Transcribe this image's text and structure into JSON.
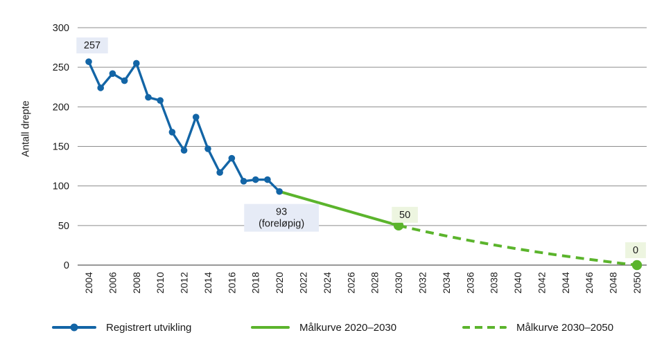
{
  "chart_data": {
    "type": "line",
    "title": "",
    "ylabel": "Antall drepte",
    "xlabel": "",
    "ylim": [
      0,
      300
    ],
    "yticks": [
      0,
      50,
      100,
      150,
      200,
      250,
      300
    ],
    "xlim": [
      2004,
      2050
    ],
    "xticks": [
      2004,
      2006,
      2008,
      2010,
      2012,
      2014,
      2016,
      2018,
      2020,
      2022,
      2024,
      2026,
      2028,
      2030,
      2032,
      2034,
      2036,
      2038,
      2040,
      2042,
      2044,
      2046,
      2048,
      2050
    ],
    "grid": "horizontal",
    "legend_position": "bottom",
    "series": [
      {
        "id": "registered",
        "name": "Registrert utvikling",
        "style": "solid-with-markers",
        "color": "#1365a6",
        "x": [
          2004,
          2005,
          2006,
          2007,
          2008,
          2009,
          2010,
          2011,
          2012,
          2013,
          2014,
          2015,
          2016,
          2017,
          2018,
          2019,
          2020
        ],
        "values": [
          257,
          224,
          242,
          233,
          255,
          212,
          208,
          168,
          145,
          187,
          147,
          117,
          135,
          106,
          108,
          108,
          93
        ]
      },
      {
        "id": "target-2020-2030",
        "name": "Målkurve 2020–2030",
        "style": "solid",
        "color": "#5bb42c",
        "x": [
          2020,
          2030
        ],
        "values": [
          93,
          50
        ]
      },
      {
        "id": "target-2030-2050",
        "name": "Målkurve 2030–2050",
        "style": "dashed",
        "shape": "gently-curved-easing-to-zero",
        "color": "#5bb42c",
        "x": [
          2030,
          2050
        ],
        "values": [
          50,
          0
        ]
      }
    ],
    "annotations": [
      {
        "id": "a2004",
        "year": 2004,
        "value": 257,
        "lines": [
          "257"
        ],
        "bg": "#e6ebf6"
      },
      {
        "id": "a2020",
        "year": 2020,
        "value": 93,
        "lines": [
          "93",
          "(foreløpig)"
        ],
        "bg": "#e6ebf6"
      },
      {
        "id": "a2030",
        "year": 2030,
        "value": 50,
        "lines": [
          "50"
        ],
        "bg": "#edf5e0"
      },
      {
        "id": "a2050",
        "year": 2050,
        "value": 0,
        "lines": [
          "0"
        ],
        "bg": "#edf5e0"
      }
    ],
    "legend": [
      {
        "label": "Registrert utvikling",
        "swatch": "blue-line-with-dot"
      },
      {
        "label": "Målkurve 2020–2030",
        "swatch": "green-solid-line"
      },
      {
        "label": "Målkurve 2030–2050",
        "swatch": "green-dashed-line"
      }
    ],
    "colors": {
      "registered": "#1365a6",
      "target": "#5bb42c",
      "grid": "#8c8c8c",
      "axis": "#595959",
      "annotation_blue_bg": "#e6ebf6",
      "annotation_green_bg": "#edf5e0",
      "text": "#1a1a1a"
    }
  }
}
